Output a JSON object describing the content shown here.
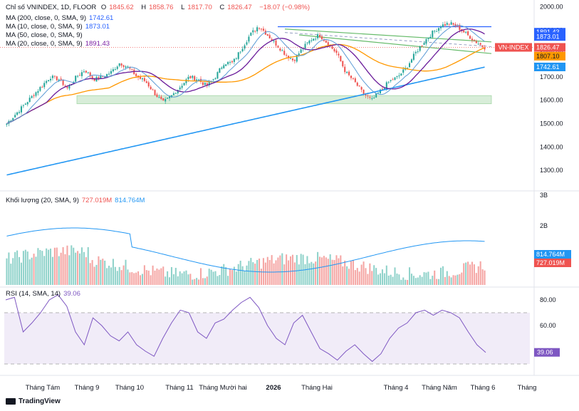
{
  "header": {
    "symbol": "Chỉ số VNINDEX, 1D, FLOOR",
    "o_label": "O",
    "o": "1845.62",
    "h_label": "H",
    "h": "1858.76",
    "l_label": "L",
    "l": "1817.70",
    "c_label": "C",
    "c": "1826.47",
    "change": "−18.07 (−0.98%)"
  },
  "ma_legends": [
    {
      "label": "MA (200, close, 0, SMA, 9)",
      "value": "1742.61",
      "color": "#2962ff"
    },
    {
      "label": "MA (10, close, 0, SMA, 9)",
      "value": "1873.01",
      "color": "#2962ff"
    },
    {
      "label": "MA (50, close, 0, SMA, 9)",
      "value": "",
      "color": "#ff9800"
    },
    {
      "label": "MA (20, close, 0, SMA, 9)",
      "value": "1891.43",
      "color": "#7b1fa2"
    }
  ],
  "volume_legend": {
    "label": "Khối lượng (20, SMA, 9)",
    "v1": "727.019M",
    "v2": "814.764M"
  },
  "rsi_legend": {
    "label": "RSI (14, SMA, 14)",
    "value": "39.06"
  },
  "colors": {
    "up": "#26a69a",
    "down": "#ef5350",
    "ma200": "#2196f3",
    "ma10": "#5b9bd5",
    "ma20": "#6a1b9a",
    "ma50": "#ff9800",
    "rsi": "#7e57c2",
    "zone": "#c8e6c9"
  },
  "brand": "TradingView",
  "chart_data": [
    {
      "type": "candlestick",
      "title": "Chỉ số VNINDEX, 1D, FLOOR",
      "x_ticks": [
        "Tháng Tám",
        "Tháng 9",
        "Tháng 10",
        "Tháng 11",
        "Tháng Mười hai",
        "2026",
        "Tháng Hai",
        "Tháng 4",
        "Tháng Năm",
        "Tháng 6",
        "Tháng"
      ],
      "y_ticks": [
        "2000.00",
        "1900.00",
        "1800.00",
        "1700.00",
        "1600.00",
        "1500.00",
        "1400.00",
        "1300.00"
      ],
      "ylim": [
        1230,
        2005
      ],
      "close_path": [
        1500,
        1540,
        1580,
        1620,
        1660,
        1700,
        1690,
        1650,
        1700,
        1730,
        1690,
        1700,
        1720,
        1760,
        1740,
        1700,
        1680,
        1630,
        1590,
        1620,
        1660,
        1700,
        1690,
        1660,
        1700,
        1760,
        1760,
        1820,
        1880,
        1920,
        1880,
        1840,
        1800,
        1770,
        1820,
        1860,
        1880,
        1840,
        1800,
        1720,
        1680,
        1630,
        1600,
        1640,
        1680,
        1700,
        1740,
        1800,
        1850,
        1890,
        1920,
        1930,
        1910,
        1880,
        1850,
        1826
      ],
      "series": [
        {
          "name": "MA (200, close, 0, SMA, 9)",
          "last": 1742.61
        },
        {
          "name": "MA (10, close, 0, SMA, 9)",
          "last": 1873.01
        },
        {
          "name": "MA (50, close, 0, SMA, 9)",
          "last": 1807.1
        },
        {
          "name": "MA (20, close, 0, SMA, 9)",
          "last": 1891.43
        }
      ],
      "price_labels": [
        {
          "text": "1891.43",
          "value": 1891.43,
          "color": "#2962ff"
        },
        {
          "text": "1873.01",
          "value": 1873.01,
          "color": "#2962ff"
        },
        {
          "text": "VN-INDEX",
          "value": 1826.47,
          "color": "#ef5350"
        },
        {
          "text": "1826.47",
          "value": 1826.47,
          "color": "#ef5350"
        },
        {
          "text": "1807.10",
          "value": 1807.1,
          "color": "#ff9800"
        },
        {
          "text": "1742.61",
          "value": 1742.61,
          "color": "#2196f3"
        }
      ],
      "support_zone": [
        1585,
        1620
      ],
      "resistance_level": 1915
    },
    {
      "type": "bar",
      "title": "Khối lượng (20, SMA, 9)",
      "y_ticks": [
        "3B",
        "2B"
      ],
      "price_labels": [
        {
          "text": "814.764M",
          "color": "#2196f3"
        },
        {
          "text": "727.019M",
          "color": "#ef5350"
        }
      ]
    },
    {
      "type": "line",
      "title": "RSI (14, SMA, 14)",
      "y_ticks": [
        "80.00",
        "60.00"
      ],
      "ylim": [
        25,
        90
      ],
      "bands": [
        70,
        30
      ],
      "last_label": "39.06",
      "values": [
        80,
        82,
        55,
        62,
        70,
        80,
        84,
        75,
        55,
        45,
        66,
        60,
        52,
        48,
        55,
        45,
        40,
        36,
        50,
        62,
        72,
        70,
        55,
        50,
        62,
        65,
        72,
        78,
        82,
        74,
        60,
        50,
        45,
        62,
        68,
        55,
        42,
        38,
        33,
        40,
        45,
        38,
        32,
        38,
        50,
        58,
        62,
        70,
        72,
        68,
        72,
        70,
        66,
        55,
        45,
        39.06
      ]
    }
  ]
}
